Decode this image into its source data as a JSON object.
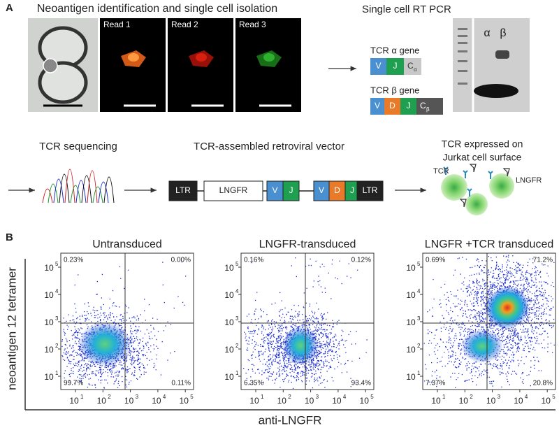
{
  "panel_a": {
    "label": "A",
    "title": "Neoantigen identification and single cell isolation",
    "reads": [
      "Read 1",
      "Read 2",
      "Read 3"
    ],
    "pcr_title": "Single cell RT PCR",
    "alpha_gene": {
      "label": "TCR α gene",
      "segments": [
        "V",
        "J",
        "C"
      ],
      "subscript": "α"
    },
    "beta_gene": {
      "label": "TCR β gene",
      "segments": [
        "V",
        "D",
        "J",
        "C"
      ],
      "subscript": "β"
    },
    "gel_lanes": [
      "α",
      "β"
    ],
    "sequencing": "TCR sequencing",
    "vector": {
      "title": "TCR-assembled retroviral vector",
      "elements": [
        "LTR",
        "LNGFR",
        "V",
        "J",
        "V",
        "D",
        "J",
        "LTR"
      ]
    },
    "expression": {
      "title_lines": [
        "TCR expressed on",
        "Jurkat cell surface"
      ],
      "labels": [
        "TCR",
        "LNGFR"
      ]
    }
  },
  "panel_b": {
    "label": "B",
    "y_axis_label": "neoantigen 12 tetramer",
    "x_axis_label": "anti-LNGFR",
    "tick_base": "10",
    "tick_exponents": [
      "1",
      "2",
      "3",
      "4",
      "5"
    ],
    "plots": [
      {
        "title": "Untransduced",
        "quadrants": {
          "upper_left": "0.23%",
          "upper_right": "0.00%",
          "lower_left": "99.7%",
          "lower_right": "0.11%"
        }
      },
      {
        "title": "LNGFR-transduced",
        "quadrants": {
          "upper_left": "0.16%",
          "upper_right": "0.12%",
          "lower_left": "6.35%",
          "lower_right": "93.4%"
        }
      },
      {
        "title": "LNGFR +TCR transduced",
        "quadrants": {
          "upper_left": "0.69%",
          "upper_right": "71.2%",
          "lower_left": "7.37%",
          "lower_right": "20.8%"
        }
      }
    ]
  }
}
